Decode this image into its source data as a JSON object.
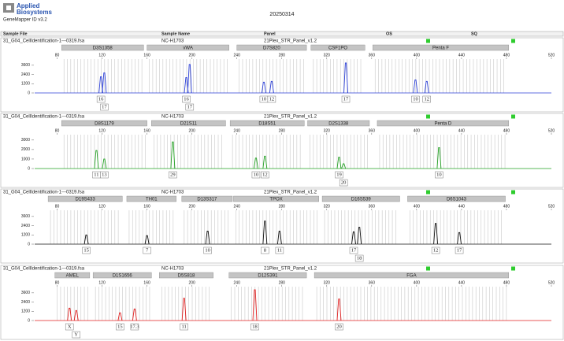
{
  "header": {
    "brand": [
      "Applied",
      "Biosystems"
    ],
    "software": "GeneMapper ID v3.2",
    "date": "20250314",
    "columns": [
      "Sample File",
      "Sample Name",
      "Panel",
      "OS",
      "SQ"
    ]
  },
  "chart_data": [
    {
      "type": "electropherogram",
      "sample_file": "31_G04_CellIdentification-1---0319.fsa",
      "sample_name": "NC-H1703",
      "panel": "21Plex_STR_Panel_v1.2",
      "color": "#2b3fd6",
      "xlim": [
        60,
        520
      ],
      "xticks": [
        80,
        120,
        160,
        200,
        240,
        280,
        320,
        360,
        400,
        440,
        480,
        520
      ],
      "ylim": [
        0,
        4200
      ],
      "yticks": [
        0,
        1200,
        2400,
        3600
      ],
      "markers": [
        {
          "name": "D3S1358",
          "range": [
            84,
            157
          ]
        },
        {
          "name": "vWA",
          "range": [
            160,
            233
          ]
        },
        {
          "name": "D7S820",
          "range": [
            240,
            302
          ]
        },
        {
          "name": "CSF1PO",
          "range": [
            306,
            354
          ]
        },
        {
          "name": "Penta F",
          "range": [
            361,
            482
          ]
        }
      ],
      "peaks": [
        {
          "allele": "16",
          "x": 119,
          "height": 2100
        },
        {
          "allele": "17",
          "x": 122,
          "height": 2600
        },
        {
          "allele": "16",
          "x": 195,
          "height": 2000
        },
        {
          "allele": "17",
          "x": 198,
          "height": 3700
        },
        {
          "allele": "10",
          "x": 264,
          "height": 1400
        },
        {
          "allele": "12",
          "x": 271,
          "height": 1500
        },
        {
          "allele": "17",
          "x": 337,
          "height": 3900
        },
        {
          "allele": "10",
          "x": 399,
          "height": 1700
        },
        {
          "allele": "12",
          "x": 409,
          "height": 1500
        }
      ]
    },
    {
      "type": "electropherogram",
      "sample_file": "31_G04_CellIdentification-1---0319.fsa",
      "sample_name": "NC-H1703",
      "panel": "21Plex_STR_Panel_v1.2",
      "color": "#22a022",
      "xlim": [
        60,
        520
      ],
      "xticks": [
        80,
        120,
        160,
        200,
        240,
        280,
        320,
        360,
        400,
        440,
        480,
        520
      ],
      "ylim": [
        0,
        3400
      ],
      "yticks": [
        0,
        1000,
        2000,
        3000
      ],
      "markers": [
        {
          "name": "D8S1179",
          "range": [
            84,
            160
          ]
        },
        {
          "name": "D21S11",
          "range": [
            164,
            230
          ]
        },
        {
          "name": "D18S51",
          "range": [
            234,
            300
          ]
        },
        {
          "name": "D2S1338",
          "range": [
            303,
            358
          ]
        },
        {
          "name": "Penta D",
          "range": [
            365,
            482
          ]
        }
      ],
      "peaks": [
        {
          "allele": "11",
          "x": 115,
          "height": 1900
        },
        {
          "allele": "13",
          "x": 122,
          "height": 1000
        },
        {
          "allele": "29",
          "x": 183,
          "height": 2800
        },
        {
          "allele": "10",
          "x": 257,
          "height": 1100
        },
        {
          "allele": "12",
          "x": 265,
          "height": 1300
        },
        {
          "allele": "19",
          "x": 331,
          "height": 1200
        },
        {
          "allele": "20",
          "x": 335,
          "height": 500
        },
        {
          "allele": "10",
          "x": 420,
          "height": 2200
        }
      ]
    },
    {
      "type": "electropherogram",
      "sample_file": "31_G04_CellIdentification-1---0319.fsa",
      "sample_name": "NC-H1703",
      "panel": "21Plex_STR_Panel_v1.2",
      "color": "#111111",
      "xlim": [
        60,
        520
      ],
      "xticks": [
        80,
        120,
        160,
        200,
        240,
        280,
        320,
        360,
        400,
        440,
        480,
        520
      ],
      "ylim": [
        0,
        4200
      ],
      "yticks": [
        0,
        1200,
        2400,
        3600
      ],
      "markers": [
        {
          "name": "D19S433",
          "range": [
            72,
            138
          ]
        },
        {
          "name": "TH01",
          "range": [
            142,
            186
          ]
        },
        {
          "name": "D13S317",
          "range": [
            191,
            236
          ]
        },
        {
          "name": "TPOX",
          "range": [
            237,
            313
          ]
        },
        {
          "name": "D16S539",
          "range": [
            316,
            385
          ]
        },
        {
          "name": "D6S1043",
          "range": [
            392,
            479
          ]
        }
      ],
      "peaks": [
        {
          "allele": "15",
          "x": 106,
          "height": 1200
        },
        {
          "allele": "7",
          "x": 160,
          "height": 1100
        },
        {
          "allele": "10",
          "x": 214,
          "height": 1700
        },
        {
          "allele": "8",
          "x": 265,
          "height": 3000
        },
        {
          "allele": "11",
          "x": 278,
          "height": 1700
        },
        {
          "allele": "17",
          "x": 344,
          "height": 1600
        },
        {
          "allele": "18",
          "x": 349,
          "height": 2200
        },
        {
          "allele": "12",
          "x": 417,
          "height": 2700
        },
        {
          "allele": "17",
          "x": 438,
          "height": 1500
        }
      ]
    },
    {
      "type": "electropherogram",
      "sample_file": "31_G04_CellIdentification-1---0319.fsa",
      "sample_name": "NC-H1703",
      "panel": "21Plex_STR_Panel_v1.2",
      "color": "#e02020",
      "xlim": [
        60,
        520
      ],
      "xticks": [
        80,
        120,
        160,
        200,
        240,
        280,
        320,
        360,
        400,
        440,
        480,
        520
      ],
      "ylim": [
        0,
        4200
      ],
      "yticks": [
        0,
        1200,
        2400,
        3600
      ],
      "markers": [
        {
          "name": "AMEL",
          "range": [
            78,
            109
          ]
        },
        {
          "name": "D1S1656",
          "range": [
            112,
            164
          ]
        },
        {
          "name": "D5S818",
          "range": [
            171,
            219
          ]
        },
        {
          "name": "D12S391",
          "range": [
            233,
            302
          ]
        },
        {
          "name": "FGA",
          "range": [
            309,
            482
          ]
        }
      ],
      "peaks": [
        {
          "allele": "X",
          "x": 91,
          "height": 1600
        },
        {
          "allele": "Y",
          "x": 97,
          "height": 1300
        },
        {
          "allele": "15",
          "x": 136,
          "height": 1000
        },
        {
          "allele": "17.3",
          "x": 149,
          "height": 1500
        },
        {
          "allele": "11",
          "x": 193,
          "height": 2900
        },
        {
          "allele": "18",
          "x": 256,
          "height": 4000
        },
        {
          "allele": "20",
          "x": 331,
          "height": 2800
        }
      ]
    }
  ]
}
